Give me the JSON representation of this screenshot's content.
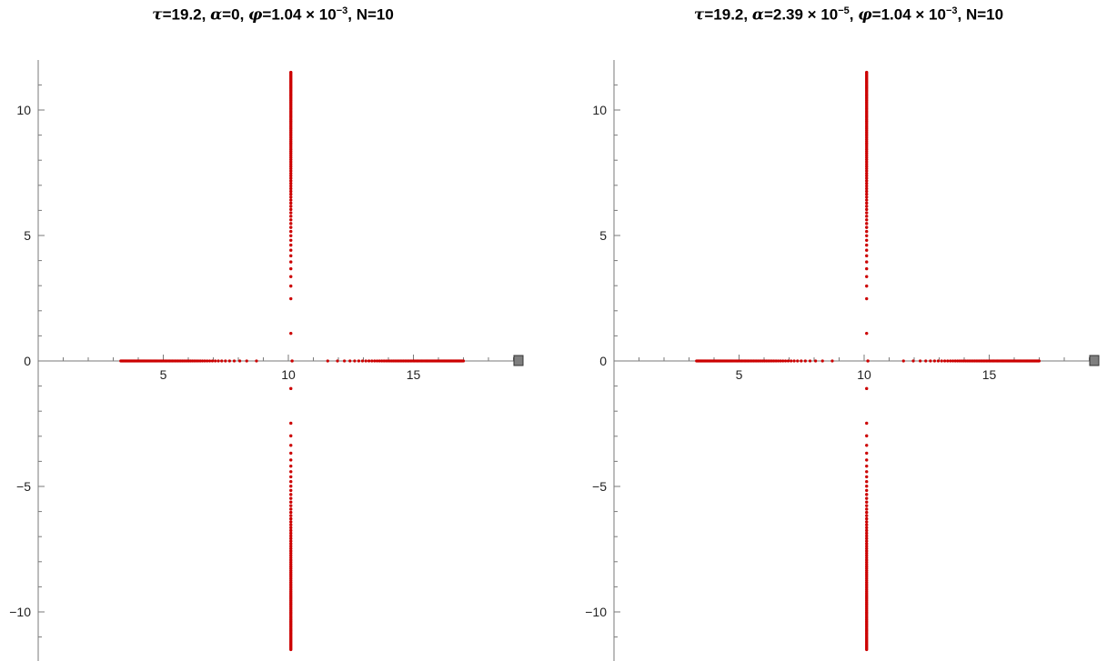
{
  "chart_data": [
    {
      "type": "scatter",
      "title": {
        "tau_symbol": "τ",
        "tau_value": "=19.2, ",
        "alpha_symbol": "α",
        "alpha_value": "=0",
        "alpha_exp": "",
        "alpha_tail": ", ",
        "phi_symbol": "φ",
        "phi_value": "=1.04 × 10",
        "phi_exp": "−3",
        "tail": ", N=10"
      },
      "x_ticks": [
        {
          "value": 5,
          "label": "5"
        },
        {
          "value": 10,
          "label": "10"
        },
        {
          "value": 15,
          "label": "15"
        }
      ],
      "y_ticks": [
        {
          "value": 10,
          "label": "10"
        },
        {
          "value": 5,
          "label": "5"
        },
        {
          "value": 0,
          "label": "0"
        },
        {
          "value": -5,
          "label": "−5"
        },
        {
          "value": -10,
          "label": "−10"
        }
      ],
      "xlim": [
        0,
        19.2
      ],
      "ylim": [
        -11.7,
        11.7
      ],
      "marker_point": {
        "x": 19.2,
        "y": 0
      },
      "series": [
        {
          "kind": "vertical",
          "x": 10.1,
          "y_min": 1.1,
          "y_max": 11.5,
          "count": 90,
          "mirror": true
        },
        {
          "kind": "horizontal",
          "y": 0,
          "x_min": 3.3,
          "x_max": 17.0,
          "count": 90
        }
      ],
      "colors": {
        "points": "#cc0000",
        "axis": "#7a7a7a",
        "marker": "#7f7f7f"
      }
    },
    {
      "type": "scatter",
      "title": {
        "tau_symbol": "τ",
        "tau_value": "=19.2, ",
        "alpha_symbol": "α",
        "alpha_value": "=2.39 × 10",
        "alpha_exp": "−5",
        "alpha_tail": ", ",
        "phi_symbol": "φ",
        "phi_value": "=1.04 × 10",
        "phi_exp": "−3",
        "tail": ", N=10"
      },
      "x_ticks": [
        {
          "value": 5,
          "label": "5"
        },
        {
          "value": 10,
          "label": "10"
        },
        {
          "value": 15,
          "label": "15"
        }
      ],
      "y_ticks": [
        {
          "value": 10,
          "label": "10"
        },
        {
          "value": 5,
          "label": "5"
        },
        {
          "value": 0,
          "label": "0"
        },
        {
          "value": -5,
          "label": "−5"
        },
        {
          "value": -10,
          "label": "−10"
        }
      ],
      "xlim": [
        0,
        19.2
      ],
      "ylim": [
        -11.7,
        11.7
      ],
      "marker_point": {
        "x": 19.2,
        "y": 0
      },
      "series": [
        {
          "kind": "vertical",
          "x": 10.1,
          "y_min": 1.1,
          "y_max": 11.5,
          "count": 90,
          "mirror": true
        },
        {
          "kind": "horizontal",
          "y": 0,
          "x_min": 3.3,
          "x_max": 17.0,
          "count": 90
        }
      ],
      "colors": {
        "points": "#cc0000",
        "axis": "#7a7a7a",
        "marker": "#7f7f7f"
      }
    }
  ]
}
